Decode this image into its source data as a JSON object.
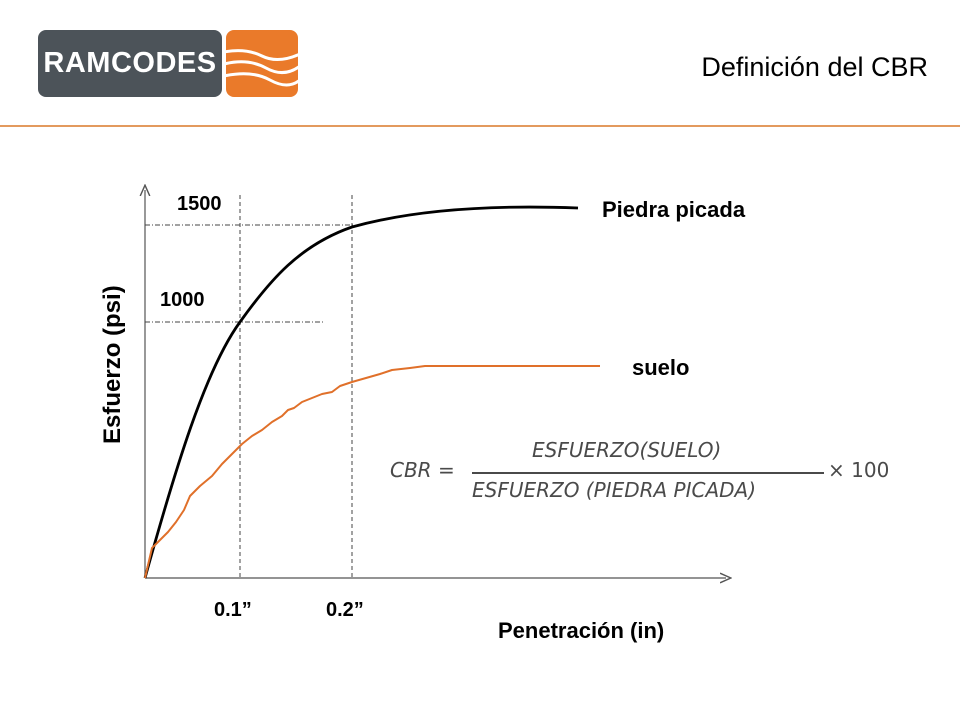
{
  "header": {
    "logo_text": "RAMCODES",
    "title": "Definición del CBR"
  },
  "colors": {
    "logo_box": "#4c5359",
    "accent": "#ea7a2a",
    "rule": "#e39a5e",
    "stone_curve": "#000000",
    "soil_curve": "#e0702a",
    "axes": "#555555",
    "formula": "#4a4a4a"
  },
  "diagram": {
    "y_axis_label": "Esfuerzo (psi)",
    "x_axis_label": "Penetración (in)",
    "y_ticks": [
      "1500",
      "1000"
    ],
    "x_ticks": [
      "0.1”",
      "0.2”"
    ],
    "curves": [
      {
        "name": "Piedra picada"
      },
      {
        "name": "suelo"
      }
    ]
  },
  "formula": {
    "lhs": "CBR =",
    "numerator": "ESFUERZO(SUELO)",
    "denominator": "ESFUERZO (PIEDRA PICADA)",
    "multiplier": "× 100"
  }
}
